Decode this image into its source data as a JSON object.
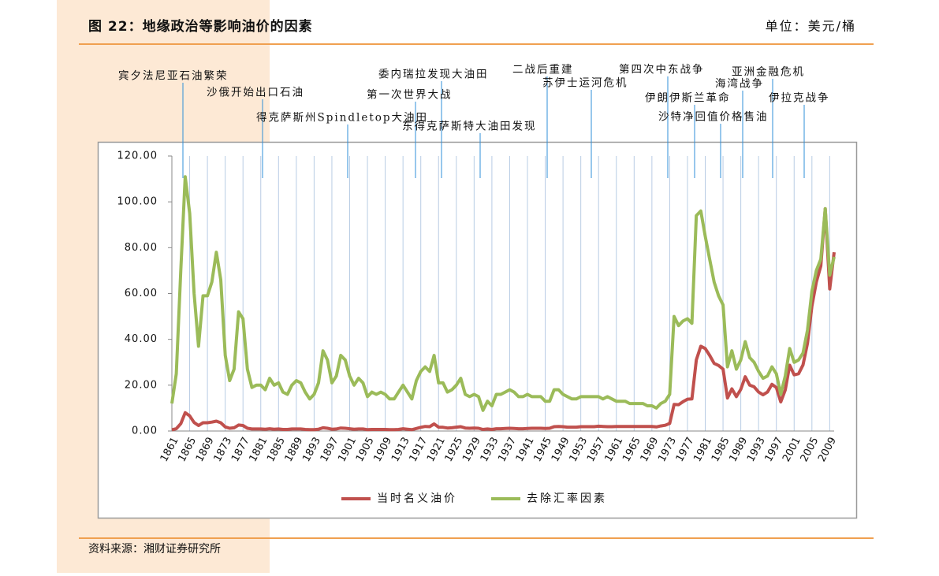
{
  "chart_data": {
    "type": "line",
    "title": "图 22：地缘政治等影响油价的因素",
    "unit": "单位：美元/桶",
    "source": "资料来源：湘财证券研究所",
    "annotations": [
      "宾夕法尼亚石油繁荣",
      "沙俄开始出口石油",
      "得克萨斯州Spindletop大油田",
      "委内瑞拉发现大油田",
      "第一次世界大战",
      "东得克萨斯特大油田发现",
      "二战后重建",
      "苏伊士运河危机",
      "第四次中东战争",
      "伊朗伊斯兰革命",
      "沙特净回值价格售油",
      "亚洲金融危机",
      "海湾战争",
      "伊拉克战争"
    ],
    "x": [
      1861,
      1862,
      1863,
      1864,
      1865,
      1866,
      1867,
      1868,
      1869,
      1870,
      1871,
      1872,
      1873,
      1874,
      1875,
      1876,
      1877,
      1878,
      1879,
      1880,
      1881,
      1882,
      1883,
      1884,
      1885,
      1886,
      1887,
      1888,
      1889,
      1890,
      1891,
      1892,
      1893,
      1894,
      1895,
      1896,
      1897,
      1898,
      1899,
      1900,
      1901,
      1902,
      1903,
      1904,
      1905,
      1906,
      1907,
      1908,
      1909,
      1910,
      1911,
      1912,
      1913,
      1914,
      1915,
      1916,
      1917,
      1918,
      1919,
      1920,
      1921,
      1922,
      1923,
      1924,
      1925,
      1926,
      1927,
      1928,
      1929,
      1930,
      1931,
      1932,
      1933,
      1934,
      1935,
      1936,
      1937,
      1938,
      1939,
      1940,
      1941,
      1942,
      1943,
      1944,
      1945,
      1946,
      1947,
      1948,
      1949,
      1950,
      1951,
      1952,
      1953,
      1954,
      1955,
      1956,
      1957,
      1958,
      1959,
      1960,
      1961,
      1962,
      1963,
      1964,
      1965,
      1966,
      1967,
      1968,
      1969,
      1970,
      1971,
      1972,
      1973,
      1974,
      1975,
      1976,
      1977,
      1978,
      1979,
      1980,
      1981,
      1982,
      1983,
      1984,
      1985,
      1986,
      1987,
      1988,
      1989,
      1990,
      1991,
      1992,
      1993,
      1994,
      1995,
      1996,
      1997,
      1998,
      1999,
      2000,
      2001,
      2002,
      2003,
      2004,
      2005,
      2006,
      2007,
      2008,
      2009,
      2010
    ],
    "series": [
      {
        "name": "当时名义油价",
        "color": "#c0504d",
        "values": [
          0.5,
          1,
          3.2,
          8,
          6.6,
          3.7,
          2.4,
          3.6,
          3.6,
          3.9,
          4.3,
          3.6,
          1.8,
          1.2,
          1.4,
          2.6,
          2.4,
          1.2,
          0.9,
          0.9,
          0.9,
          0.8,
          1,
          0.8,
          0.9,
          0.7,
          0.7,
          0.9,
          0.9,
          0.9,
          0.7,
          0.6,
          0.6,
          0.8,
          1.4,
          1.2,
          0.8,
          0.9,
          1.3,
          1.2,
          1,
          0.8,
          0.9,
          0.9,
          0.6,
          0.7,
          0.7,
          0.7,
          0.7,
          0.6,
          0.6,
          0.7,
          1,
          0.8,
          0.6,
          1.1,
          1.6,
          2,
          1.9,
          3.1,
          1.7,
          1.6,
          1.3,
          1.4,
          1.7,
          1.9,
          1.3,
          1.2,
          1.3,
          1.2,
          0.7,
          0.9,
          0.7,
          1,
          1,
          1.1,
          1.2,
          1.1,
          1,
          1,
          1.1,
          1.2,
          1.2,
          1.2,
          1.1,
          1.2,
          1.9,
          2,
          1.9,
          1.7,
          1.7,
          1.7,
          1.9,
          1.9,
          1.9,
          1.9,
          2.1,
          2,
          1.9,
          1.9,
          2,
          2,
          2,
          2,
          2,
          2,
          2,
          2,
          2,
          1.8,
          2.2,
          2.5,
          3.3,
          11.6,
          11.5,
          12.8,
          13.9,
          14,
          31,
          37,
          36,
          33,
          29.5,
          28.6,
          27,
          14.4,
          18.4,
          15,
          18.2,
          23.7,
          20,
          19.3,
          17,
          15.8,
          17,
          20.4,
          19,
          12.7,
          17.9,
          28.7,
          24.5,
          25,
          28.8,
          38.3,
          54.5,
          65,
          72,
          97,
          62,
          78
        ]
      },
      {
        "name": "去除汇率因素",
        "color": "#9bbb59",
        "values": [
          12,
          25,
          70,
          111,
          95,
          60,
          37,
          59,
          59,
          65,
          78,
          66,
          33,
          22,
          27,
          52,
          49,
          27,
          19,
          20,
          20,
          18,
          23,
          20,
          21,
          17,
          16,
          20,
          22,
          21,
          17,
          14,
          16,
          21,
          35,
          31,
          21,
          24,
          33,
          31,
          24,
          20,
          23,
          21,
          15,
          17,
          16,
          17,
          16,
          14,
          14,
          17,
          20,
          17,
          14,
          22,
          26,
          28,
          26,
          33,
          21,
          21,
          17,
          18,
          20,
          23,
          16,
          15,
          16,
          15,
          9,
          13,
          11,
          16,
          16,
          17,
          18,
          17,
          15,
          15,
          16,
          15,
          15,
          15,
          13,
          13,
          18,
          18,
          16,
          15,
          14,
          14,
          15,
          15,
          15,
          15,
          15,
          14,
          15,
          14,
          13,
          13,
          13,
          12,
          12,
          12,
          12,
          11,
          11,
          10,
          12,
          13,
          16,
          50,
          46,
          48,
          49,
          47,
          94,
          96,
          85,
          75,
          65,
          59,
          55,
          28,
          35,
          27,
          31,
          39,
          32,
          30,
          26,
          23,
          24,
          28,
          25,
          16,
          24,
          36,
          30,
          31,
          34,
          44,
          61,
          70,
          75,
          97,
          68,
          76
        ]
      }
    ],
    "xlim": [
      1861,
      2010
    ],
    "xticks": [
      1861,
      1865,
      1869,
      1873,
      1877,
      1881,
      1885,
      1889,
      1893,
      1897,
      1901,
      1905,
      1909,
      1913,
      1917,
      1921,
      1925,
      1929,
      1933,
      1937,
      1941,
      1945,
      1949,
      1953,
      1957,
      1961,
      1965,
      1969,
      1973,
      1977,
      1981,
      1985,
      1989,
      1993,
      1997,
      2001,
      2005,
      2009
    ],
    "ylim": [
      0,
      120
    ],
    "yticks": [
      {
        "value": 0,
        "label": "0.00"
      },
      {
        "value": 20,
        "label": "20.00"
      },
      {
        "value": 40,
        "label": "40.00"
      },
      {
        "value": 60,
        "label": "60.00"
      },
      {
        "value": 80,
        "label": "80.00"
      },
      {
        "value": 100,
        "label": "100.00"
      },
      {
        "value": 120,
        "label": "120.00"
      }
    ],
    "grid": true,
    "legend": "bottom"
  }
}
